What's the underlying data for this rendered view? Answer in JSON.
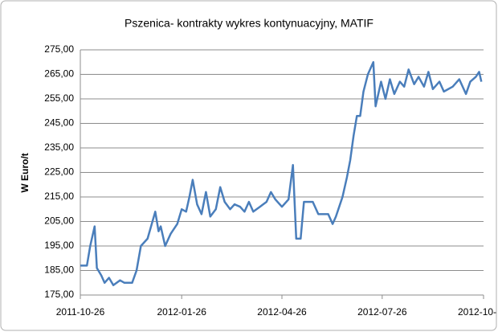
{
  "chart_data": {
    "type": "line",
    "title": "Pszenica- kontrakty wykres kontynuacyjny, MATIF",
    "y_label": "W Euro/t",
    "x": [
      "2011-10-26",
      "2011-11-01",
      "2011-11-04",
      "2011-11-08",
      "2011-11-10",
      "2011-11-14",
      "2011-11-17",
      "2011-11-21",
      "2011-11-25",
      "2011-12-01",
      "2011-12-05",
      "2011-12-12",
      "2011-12-16",
      "2011-12-20",
      "2011-12-26",
      "2012-01-02",
      "2012-01-05",
      "2012-01-07",
      "2012-01-11",
      "2012-01-16",
      "2012-01-22",
      "2012-01-26",
      "2012-01-30",
      "2012-02-02",
      "2012-02-05",
      "2012-02-09",
      "2012-02-13",
      "2012-02-17",
      "2012-02-21",
      "2012-02-26",
      "2012-03-01",
      "2012-03-05",
      "2012-03-10",
      "2012-03-14",
      "2012-03-19",
      "2012-03-23",
      "2012-03-27",
      "2012-03-31",
      "2012-04-06",
      "2012-04-12",
      "2012-04-16",
      "2012-04-20",
      "2012-04-26",
      "2012-05-02",
      "2012-05-06",
      "2012-05-09",
      "2012-05-13",
      "2012-05-16",
      "2012-05-24",
      "2012-05-29",
      "2012-06-07",
      "2012-06-11",
      "2012-06-14",
      "2012-06-20",
      "2012-06-24",
      "2012-06-27",
      "2012-06-30",
      "2012-07-03",
      "2012-07-06",
      "2012-07-09",
      "2012-07-13",
      "2012-07-18",
      "2012-07-20",
      "2012-07-25",
      "2012-07-29",
      "2012-08-02",
      "2012-08-06",
      "2012-08-11",
      "2012-08-15",
      "2012-08-19",
      "2012-08-24",
      "2012-08-28",
      "2012-09-02",
      "2012-09-06",
      "2012-09-10",
      "2012-09-16",
      "2012-09-20",
      "2012-09-28",
      "2012-10-04",
      "2012-10-10",
      "2012-10-14",
      "2012-10-19",
      "2012-10-22",
      "2012-10-24"
    ],
    "series": [
      {
        "name": "MATIF",
        "color": "#4a7ebb",
        "values": [
          187,
          187,
          195,
          203,
          186,
          183,
          180,
          182,
          179,
          181,
          180,
          180,
          185,
          195,
          198,
          209,
          201,
          203,
          195,
          200,
          204,
          210,
          209,
          215,
          222,
          212,
          208,
          217,
          207,
          210,
          219,
          213,
          210,
          212,
          211,
          209,
          213,
          209,
          211,
          213,
          217,
          214,
          211,
          214,
          228,
          198,
          198,
          213,
          213,
          208,
          208,
          204,
          207,
          215,
          223,
          230,
          240,
          248,
          248,
          258,
          265,
          270,
          252,
          262,
          255,
          263,
          257,
          262,
          260,
          267,
          261,
          264,
          260,
          266,
          259,
          262,
          258,
          260,
          263,
          257,
          262,
          264,
          266,
          262
        ]
      }
    ],
    "xlim": [
      "2011-10-26",
      "2012-10-26"
    ],
    "xticks": [
      "2011-10-26",
      "2012-01-26",
      "2012-04-26",
      "2012-07-26",
      {
        "value": "2012-10-26",
        "label": "2012-10-"
      }
    ],
    "ylim": [
      175,
      275
    ],
    "yticks": [
      {
        "value": 175,
        "label": "175,00"
      },
      {
        "value": 185,
        "label": "185,00"
      },
      {
        "value": 195,
        "label": "195,00"
      },
      {
        "value": 205,
        "label": "205,00"
      },
      {
        "value": 215,
        "label": "215,00"
      },
      {
        "value": 225,
        "label": "225,00"
      },
      {
        "value": 235,
        "label": "235,00"
      },
      {
        "value": 245,
        "label": "245,00"
      },
      {
        "value": 255,
        "label": "255,00"
      },
      {
        "value": 265,
        "label": "265,00"
      },
      {
        "value": 275,
        "label": "275,00"
      }
    ],
    "grid": true
  }
}
